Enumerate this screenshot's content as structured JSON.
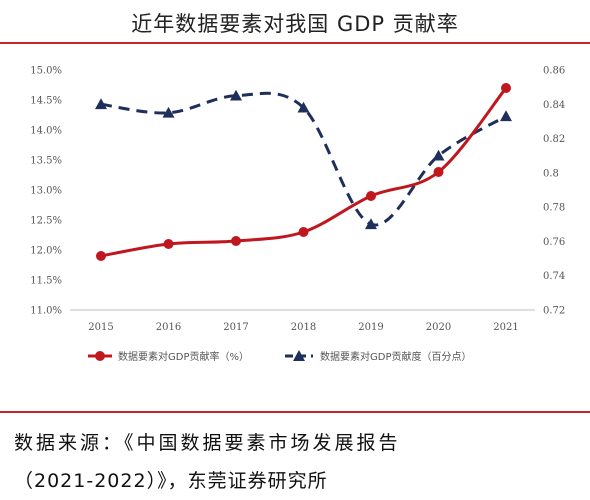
{
  "title": "近年数据要素对我国 GDP 贡献率",
  "source": {
    "line1": "数据来源：《中国数据要素市场发展报告",
    "line2": "（2021-2022）》，东莞证券研究所"
  },
  "colors": {
    "accent": "#c0262b",
    "series_rate": "#c0171e",
    "series_degree": "#1f2f5c"
  },
  "chart_data": {
    "type": "line",
    "title": "近年数据要素对我国 GDP 贡献率",
    "x": [
      "2015",
      "2016",
      "2017",
      "2018",
      "2019",
      "2020",
      "2021"
    ],
    "series": [
      {
        "name": "数据要素对GDP贡献率（%）",
        "axis": "left",
        "style": "solid-line-circle-markers",
        "values": [
          11.9,
          12.1,
          12.15,
          12.3,
          12.9,
          13.3,
          14.7
        ]
      },
      {
        "name": "数据要素对GDP贡献度（百分点）",
        "axis": "right",
        "style": "dashed-line-triangle-markers",
        "values": [
          0.84,
          0.835,
          0.845,
          0.838,
          0.77,
          0.81,
          0.833
        ]
      }
    ],
    "y_left": {
      "ylim": [
        11.0,
        15.0
      ],
      "ticks": [
        "11.0%",
        "11.5%",
        "12.0%",
        "12.5%",
        "13.0%",
        "13.5%",
        "14.0%",
        "14.5%",
        "15.0%"
      ]
    },
    "y_right": {
      "ylim": [
        0.72,
        0.86
      ],
      "ticks": [
        "0.72",
        "0.74",
        "0.76",
        "0.78",
        "0.8",
        "0.82",
        "0.84",
        "0.86"
      ]
    },
    "grid": false,
    "legend": "bottom"
  }
}
